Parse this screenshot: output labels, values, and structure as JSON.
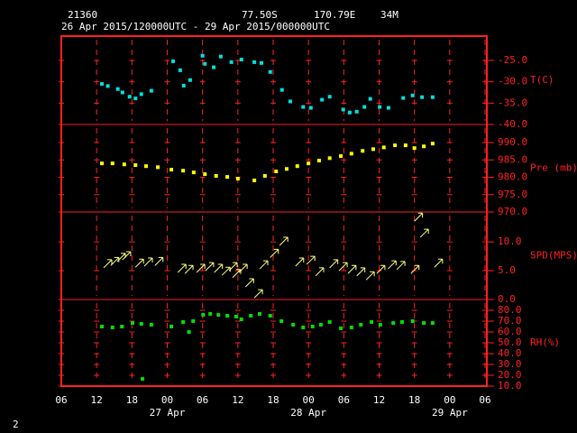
{
  "header": {
    "station": "21360",
    "lat": "77.50S",
    "lon": "170.79E",
    "elev": "34M",
    "period": "26 Apr 2015/120000UTC - 29 Apr 2015/000000UTC"
  },
  "footer": "2",
  "chart_data": [
    {
      "type": "scatter",
      "ylabel": "T(C)",
      "color": "#00e0e0",
      "x": [
        6.9,
        7.9,
        9.6,
        10.4,
        11.6,
        12.6,
        13.6,
        15.3,
        19.0,
        20.2,
        20.8,
        21.9,
        24.0,
        24.4,
        25.9,
        27.1,
        28.9,
        30.6,
        32.8,
        34.0,
        35.5,
        37.5,
        38.9,
        41.1,
        42.4,
        44.3,
        45.6,
        47.9,
        49.0,
        50.2,
        51.5,
        52.5,
        54.1,
        55.6,
        58.1,
        59.7,
        61.3,
        63.1
      ],
      "values": [
        -30.5,
        -31.0,
        -31.7,
        -32.5,
        -33.5,
        -33.9,
        -32.9,
        -32.1,
        -25.2,
        -27.3,
        -30.9,
        -29.6,
        -23.9,
        -25.8,
        -26.6,
        -24.1,
        -25.4,
        -24.8,
        -25.4,
        -25.6,
        -27.7,
        -31.9,
        -34.6,
        -35.9,
        -36.1,
        -34.2,
        -33.5,
        -36.5,
        -37.2,
        -37.0,
        -35.9,
        -34.0,
        -35.9,
        -36.1,
        -33.8,
        -33.2,
        -33.6,
        -33.6
      ],
      "ylim": [
        -40,
        -19.3
      ],
      "yticks": [
        {
          "value": -25,
          "label": "-25.0"
        },
        {
          "value": -30,
          "label": "-30.0"
        },
        {
          "value": -35,
          "label": "-35.0"
        },
        {
          "value": -40,
          "label": "-40.0"
        }
      ]
    },
    {
      "type": "scatter",
      "ylabel": "Pre (mb)",
      "color": "#ffff00",
      "x": [
        6.9,
        8.7,
        10.7,
        12.6,
        14.4,
        16.4,
        18.7,
        20.7,
        22.5,
        24.4,
        26.3,
        28.2,
        30.0,
        32.8,
        34.6,
        36.5,
        38.3,
        40.1,
        42.0,
        43.8,
        45.6,
        47.5,
        49.3,
        51.2,
        53.0,
        54.8,
        56.7,
        58.5,
        60.0,
        61.6,
        63.1
      ],
      "values": [
        984.0,
        984.0,
        983.7,
        983.5,
        983.2,
        982.9,
        982.2,
        981.9,
        981.4,
        980.9,
        980.4,
        980.1,
        979.6,
        979.1,
        980.4,
        981.7,
        982.4,
        983.2,
        984.0,
        984.8,
        985.5,
        986.1,
        986.8,
        987.6,
        988.1,
        988.6,
        989.2,
        989.2,
        988.4,
        988.9,
        989.7
      ],
      "ylim": [
        970,
        995.2
      ],
      "yticks": [
        {
          "value": 990,
          "label": "990.0"
        },
        {
          "value": 985,
          "label": "985.0"
        },
        {
          "value": 980,
          "label": "980.0"
        },
        {
          "value": 975,
          "label": "975.0"
        },
        {
          "value": 970,
          "label": "970.0"
        }
      ]
    },
    {
      "type": "wind",
      "ylabel": "SPD(MPS)",
      "color": "#ffff80",
      "x": [
        7.2,
        8.4,
        9.5,
        10.4,
        12.6,
        14.1,
        15.9,
        19.8,
        21.0,
        23.0,
        24.5,
        26.0,
        27.3,
        28.5,
        29.1,
        30.2,
        31.3,
        32.8,
        33.7,
        35.5,
        37.1,
        39.8,
        41.7,
        43.2,
        45.6,
        47.2,
        48.7,
        50.2,
        51.8,
        53.6,
        55.5,
        57.0,
        59.4,
        60.0,
        61.0,
        63.4
      ],
      "values": [
        5.5,
        5.9,
        6.6,
        6.9,
        5.6,
        5.8,
        5.9,
        4.7,
        4.5,
        4.7,
        5.0,
        4.7,
        4.2,
        5.0,
        3.8,
        4.7,
        2.2,
        0.3,
        5.3,
        7.3,
        9.4,
        5.8,
        6.1,
        4.1,
        5.5,
        5.0,
        4.5,
        4.1,
        3.4,
        4.5,
        5.3,
        5.2,
        4.5,
        13.6,
        10.8,
        5.6
      ],
      "ylim": [
        0,
        15.2
      ],
      "yticks": [
        {
          "value": 10,
          "label": "10.0"
        },
        {
          "value": 5,
          "label": "5.0"
        },
        {
          "value": 0,
          "label": "0.0"
        }
      ]
    },
    {
      "type": "scatter",
      "ylabel": "RH(%)",
      "color": "#00e000",
      "x": [
        6.9,
        8.7,
        10.3,
        12.1,
        13.6,
        13.8,
        15.3,
        18.7,
        20.7,
        21.7,
        22.4,
        24.1,
        25.3,
        26.7,
        28.2,
        29.7,
        30.6,
        32.2,
        33.7,
        35.5,
        37.4,
        39.4,
        41.1,
        42.7,
        44.1,
        45.6,
        47.5,
        49.3,
        50.9,
        52.7,
        54.2,
        56.4,
        57.9,
        59.7,
        61.6,
        63.1
      ],
      "values": [
        65,
        64.2,
        65,
        68.3,
        67.5,
        16.7,
        66.7,
        65,
        69.2,
        60,
        70,
        75.8,
        76.7,
        75.8,
        75,
        74.2,
        71.7,
        75,
        76.7,
        75,
        70,
        66.7,
        64.2,
        65,
        66.7,
        69.2,
        63.3,
        64.2,
        66.7,
        69.2,
        66.7,
        68.3,
        69.2,
        70,
        68.3,
        68.3
      ],
      "ylim": [
        10,
        90
      ],
      "yticks": [
        {
          "value": 80,
          "label": "80.0"
        },
        {
          "value": 70,
          "label": "70.0"
        },
        {
          "value": 60,
          "label": "60.0"
        },
        {
          "value": 50,
          "label": "50.0"
        },
        {
          "value": 40,
          "label": "40.0"
        },
        {
          "value": 30,
          "label": "30.0"
        },
        {
          "value": 20,
          "label": "20.0"
        },
        {
          "value": 10,
          "label": "10.0"
        }
      ],
      "xlim": [
        0,
        72
      ],
      "xticks": [
        {
          "value": 0,
          "label": "06"
        },
        {
          "value": 6,
          "label": "12"
        },
        {
          "value": 12,
          "label": "18"
        },
        {
          "value": 18,
          "label": "00"
        },
        {
          "value": 24,
          "label": "06"
        },
        {
          "value": 30,
          "label": "12"
        },
        {
          "value": 36,
          "label": "18"
        },
        {
          "value": 42,
          "label": "00"
        },
        {
          "value": 48,
          "label": "06"
        },
        {
          "value": 54,
          "label": "12"
        },
        {
          "value": 60,
          "label": "18"
        },
        {
          "value": 66,
          "label": "00"
        },
        {
          "value": 72,
          "label": "06"
        }
      ],
      "daylabels": [
        {
          "value": 18,
          "label": "27 Apr"
        },
        {
          "value": 42,
          "label": "28 Apr"
        },
        {
          "value": 66,
          "label": "29 Apr"
        }
      ]
    }
  ]
}
